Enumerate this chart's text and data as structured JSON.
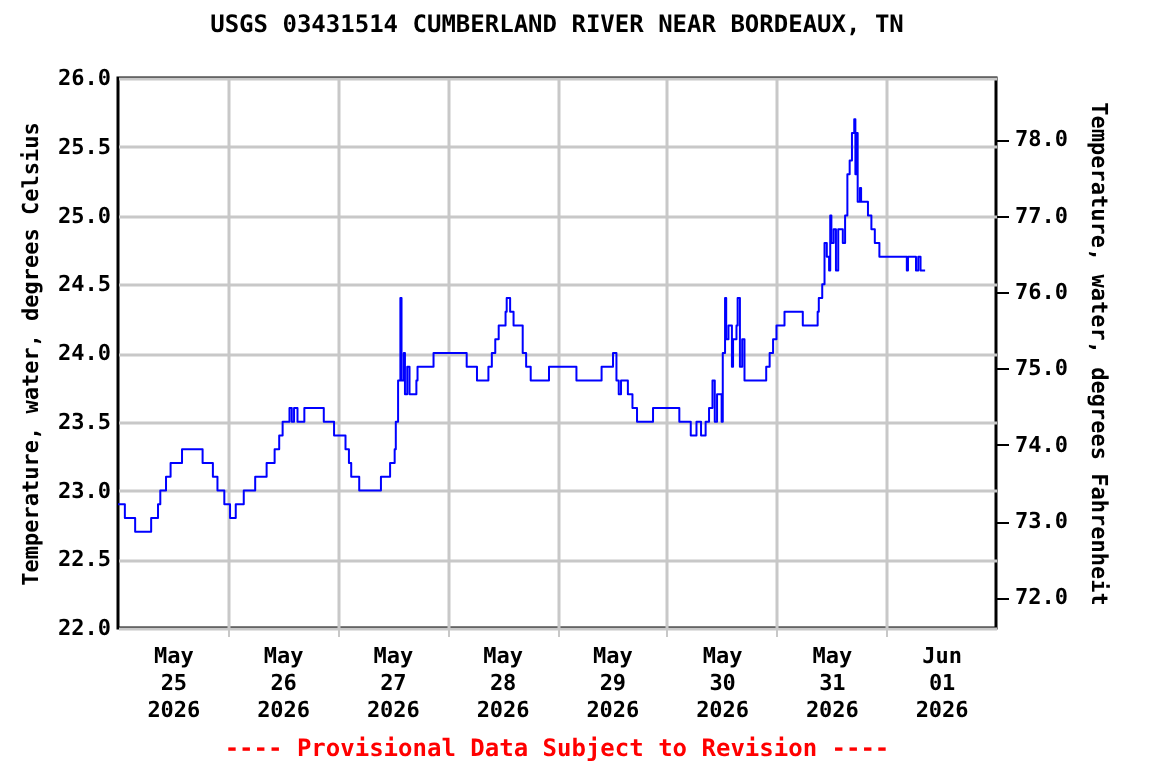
{
  "chart_data": {
    "type": "step",
    "title": "USGS 03431514 CUMBERLAND RIVER NEAR BORDEAUX, TN",
    "ylabel": "Temperature, water, degrees Celsius",
    "y2label": "Temperature, water, degrees Fahrenheit",
    "annotations": [
      "---- Provisional Data Subject to Revision ----"
    ],
    "x": [
      "2026-05-25T00:00",
      "2026-05-25T01:30",
      "2026-05-25T03:45",
      "2026-05-25T07:00",
      "2026-05-25T07:15",
      "2026-05-25T08:45",
      "2026-05-25T09:15",
      "2026-05-25T10:30",
      "2026-05-25T11:30",
      "2026-05-25T14:00",
      "2026-05-25T18:15",
      "2026-05-25T18:30",
      "2026-05-25T20:45",
      "2026-05-25T21:45",
      "2026-05-25T23:15",
      "2026-05-26T00:30",
      "2026-05-26T01:45",
      "2026-05-26T03:30",
      "2026-05-26T06:00",
      "2026-05-26T08:30",
      "2026-05-26T10:15",
      "2026-05-26T11:15",
      "2026-05-26T12:00",
      "2026-05-26T13:30",
      "2026-05-26T14:00",
      "2026-05-26T14:30",
      "2026-05-26T15:15",
      "2026-05-26T16:45",
      "2026-05-26T20:45",
      "2026-05-26T21:00",
      "2026-05-26T23:15",
      "2026-05-27T01:45",
      "2026-05-27T02:30",
      "2026-05-27T03:00",
      "2026-05-27T04:45",
      "2026-05-27T09:15",
      "2026-05-27T09:30",
      "2026-05-27T11:30",
      "2026-05-27T12:30",
      "2026-05-27T12:45",
      "2026-05-27T13:15",
      "2026-05-27T13:45",
      "2026-05-27T14:00",
      "2026-05-27T14:30",
      "2026-05-27T14:45",
      "2026-05-27T15:15",
      "2026-05-27T15:45",
      "2026-05-27T16:45",
      "2026-05-27T17:15",
      "2026-05-27T17:30",
      "2026-05-27T21:00",
      "2026-05-28T04:00",
      "2026-05-28T04:15",
      "2026-05-28T06:30",
      "2026-05-28T08:30",
      "2026-05-28T09:00",
      "2026-05-28T09:45",
      "2026-05-28T10:30",
      "2026-05-28T11:15",
      "2026-05-28T12:15",
      "2026-05-28T12:45",
      "2026-05-28T13:00",
      "2026-05-28T13:45",
      "2026-05-28T14:30",
      "2026-05-28T16:00",
      "2026-05-28T16:30",
      "2026-05-28T17:15",
      "2026-05-28T18:15",
      "2026-05-28T21:30",
      "2026-05-28T22:15",
      "2026-05-29T03:30",
      "2026-05-29T04:15",
      "2026-05-29T09:00",
      "2026-05-29T09:45",
      "2026-05-29T12:00",
      "2026-05-29T12:15",
      "2026-05-29T13:00",
      "2026-05-29T13:30",
      "2026-05-29T14:00",
      "2026-05-29T15:30",
      "2026-05-29T16:30",
      "2026-05-29T17:30",
      "2026-05-29T20:30",
      "2026-05-29T21:00",
      "2026-05-30T02:00",
      "2026-05-30T02:45",
      "2026-05-30T05:15",
      "2026-05-30T06:30",
      "2026-05-30T07:30",
      "2026-05-30T08:30",
      "2026-05-30T09:15",
      "2026-05-30T10:00",
      "2026-05-30T10:30",
      "2026-05-30T11:00",
      "2026-05-30T12:00",
      "2026-05-30T12:15",
      "2026-05-30T12:45",
      "2026-05-30T13:00",
      "2026-05-30T13:30",
      "2026-05-30T14:15",
      "2026-05-30T14:30",
      "2026-05-30T15:15",
      "2026-05-30T15:30",
      "2026-05-30T16:00",
      "2026-05-30T16:30",
      "2026-05-30T17:00",
      "2026-05-30T21:30",
      "2026-05-30T21:45",
      "2026-05-30T22:30",
      "2026-05-30T23:15",
      "2026-05-31T00:00",
      "2026-05-31T01:45",
      "2026-05-31T05:30",
      "2026-05-31T05:45",
      "2026-05-31T08:30",
      "2026-05-31T09:00",
      "2026-05-31T09:15",
      "2026-05-31T10:00",
      "2026-05-31T10:30",
      "2026-05-31T11:00",
      "2026-05-31T11:30",
      "2026-05-31T11:45",
      "2026-05-31T12:00",
      "2026-05-31T12:30",
      "2026-05-31T13:00",
      "2026-05-31T13:30",
      "2026-05-31T14:30",
      "2026-05-31T15:00",
      "2026-05-31T15:30",
      "2026-05-31T16:00",
      "2026-05-31T16:30",
      "2026-05-31T17:00",
      "2026-05-31T17:15",
      "2026-05-31T17:30",
      "2026-05-31T17:45",
      "2026-05-31T18:15",
      "2026-05-31T18:30",
      "2026-05-31T20:00",
      "2026-05-31T20:45",
      "2026-05-31T21:30",
      "2026-05-31T22:30",
      "2026-06-01T03:45",
      "2026-06-01T04:30",
      "2026-06-01T04:45",
      "2026-06-01T06:15",
      "2026-06-01T06:30",
      "2026-06-01T07:00",
      "2026-06-01T07:30",
      "2026-06-01T08:30"
    ],
    "series": [
      {
        "color": "#0000ff",
        "values": [
          22.9,
          22.8,
          22.7,
          22.7,
          22.8,
          22.9,
          23.0,
          23.1,
          23.2,
          23.3,
          23.3,
          23.2,
          23.1,
          23.0,
          22.9,
          22.8,
          22.9,
          23.0,
          23.1,
          23.2,
          23.3,
          23.4,
          23.5,
          23.6,
          23.5,
          23.6,
          23.5,
          23.6,
          23.6,
          23.5,
          23.4,
          23.3,
          23.2,
          23.1,
          23.0,
          23.0,
          23.1,
          23.2,
          23.3,
          23.5,
          23.8,
          24.4,
          23.8,
          24.0,
          23.7,
          23.9,
          23.7,
          23.7,
          23.8,
          23.9,
          24.0,
          24.0,
          23.9,
          23.8,
          23.8,
          23.9,
          24.0,
          24.1,
          24.2,
          24.2,
          24.3,
          24.4,
          24.3,
          24.2,
          24.2,
          24.0,
          23.9,
          23.8,
          23.8,
          23.9,
          23.9,
          23.8,
          23.8,
          23.9,
          23.9,
          24.0,
          23.8,
          23.7,
          23.8,
          23.7,
          23.6,
          23.5,
          23.5,
          23.6,
          23.6,
          23.5,
          23.4,
          23.5,
          23.4,
          23.5,
          23.6,
          23.8,
          23.5,
          23.7,
          23.5,
          24.0,
          24.4,
          24.1,
          24.2,
          23.9,
          24.1,
          24.2,
          24.4,
          23.9,
          24.1,
          23.8,
          23.8,
          23.9,
          24.0,
          24.1,
          24.2,
          24.3,
          24.3,
          24.2,
          24.2,
          24.3,
          24.4,
          24.5,
          24.8,
          24.7,
          24.6,
          25.0,
          24.8,
          24.9,
          24.6,
          24.9,
          24.8,
          25.0,
          25.3,
          25.4,
          25.6,
          25.7,
          25.3,
          25.6,
          25.1,
          25.2,
          25.1,
          25.0,
          24.9,
          24.8,
          24.7,
          24.7,
          24.6,
          24.7,
          24.7,
          24.6,
          24.7,
          24.6,
          24.6
        ]
      }
    ],
    "xlim": [
      "2026-05-25T00:00",
      "2026-06-02T00:00"
    ],
    "xticks": [
      {
        "value": "2026-05-25T12:00",
        "label": "May\n25\n2026"
      },
      {
        "value": "2026-05-26T00:00",
        "label": null
      },
      {
        "value": "2026-05-26T12:00",
        "label": "May\n26\n2026"
      },
      {
        "value": "2026-05-27T00:00",
        "label": null
      },
      {
        "value": "2026-05-27T12:00",
        "label": "May\n27\n2026"
      },
      {
        "value": "2026-05-28T00:00",
        "label": null
      },
      {
        "value": "2026-05-28T12:00",
        "label": "May\n28\n2026"
      },
      {
        "value": "2026-05-29T00:00",
        "label": null
      },
      {
        "value": "2026-05-29T12:00",
        "label": "May\n29\n2026"
      },
      {
        "value": "2026-05-30T00:00",
        "label": null
      },
      {
        "value": "2026-05-30T12:00",
        "label": "May\n30\n2026"
      },
      {
        "value": "2026-05-31T00:00",
        "label": null
      },
      {
        "value": "2026-05-31T12:00",
        "label": "May\n31\n2026"
      },
      {
        "value": "2026-06-01T00:00",
        "label": null
      },
      {
        "value": "2026-06-01T12:00",
        "label": "Jun\n01\n2026"
      }
    ],
    "ylim": [
      22,
      26
    ],
    "yticks": [
      {
        "value": 22,
        "label": "22.0"
      },
      {
        "value": 22.5,
        "label": "22.5"
      },
      {
        "value": 23,
        "label": "23.0"
      },
      {
        "value": 23.5,
        "label": "23.5"
      },
      {
        "value": 24,
        "label": "24.0"
      },
      {
        "value": 24.5,
        "label": "24.5"
      },
      {
        "value": 25,
        "label": "25.0"
      },
      {
        "value": 25.5,
        "label": "25.5"
      },
      {
        "value": 26,
        "label": "26.0"
      }
    ],
    "y2lim": [
      71.6,
      78.8
    ],
    "y2ticks": [
      {
        "value": 72,
        "label": "72.0"
      },
      {
        "value": 73,
        "label": "73.0"
      },
      {
        "value": 74,
        "label": "74.0"
      },
      {
        "value": 75,
        "label": "75.0"
      },
      {
        "value": 76,
        "label": "76.0"
      },
      {
        "value": 77,
        "label": "77.0"
      },
      {
        "value": 78,
        "label": "78.0"
      }
    ],
    "grid": true
  }
}
